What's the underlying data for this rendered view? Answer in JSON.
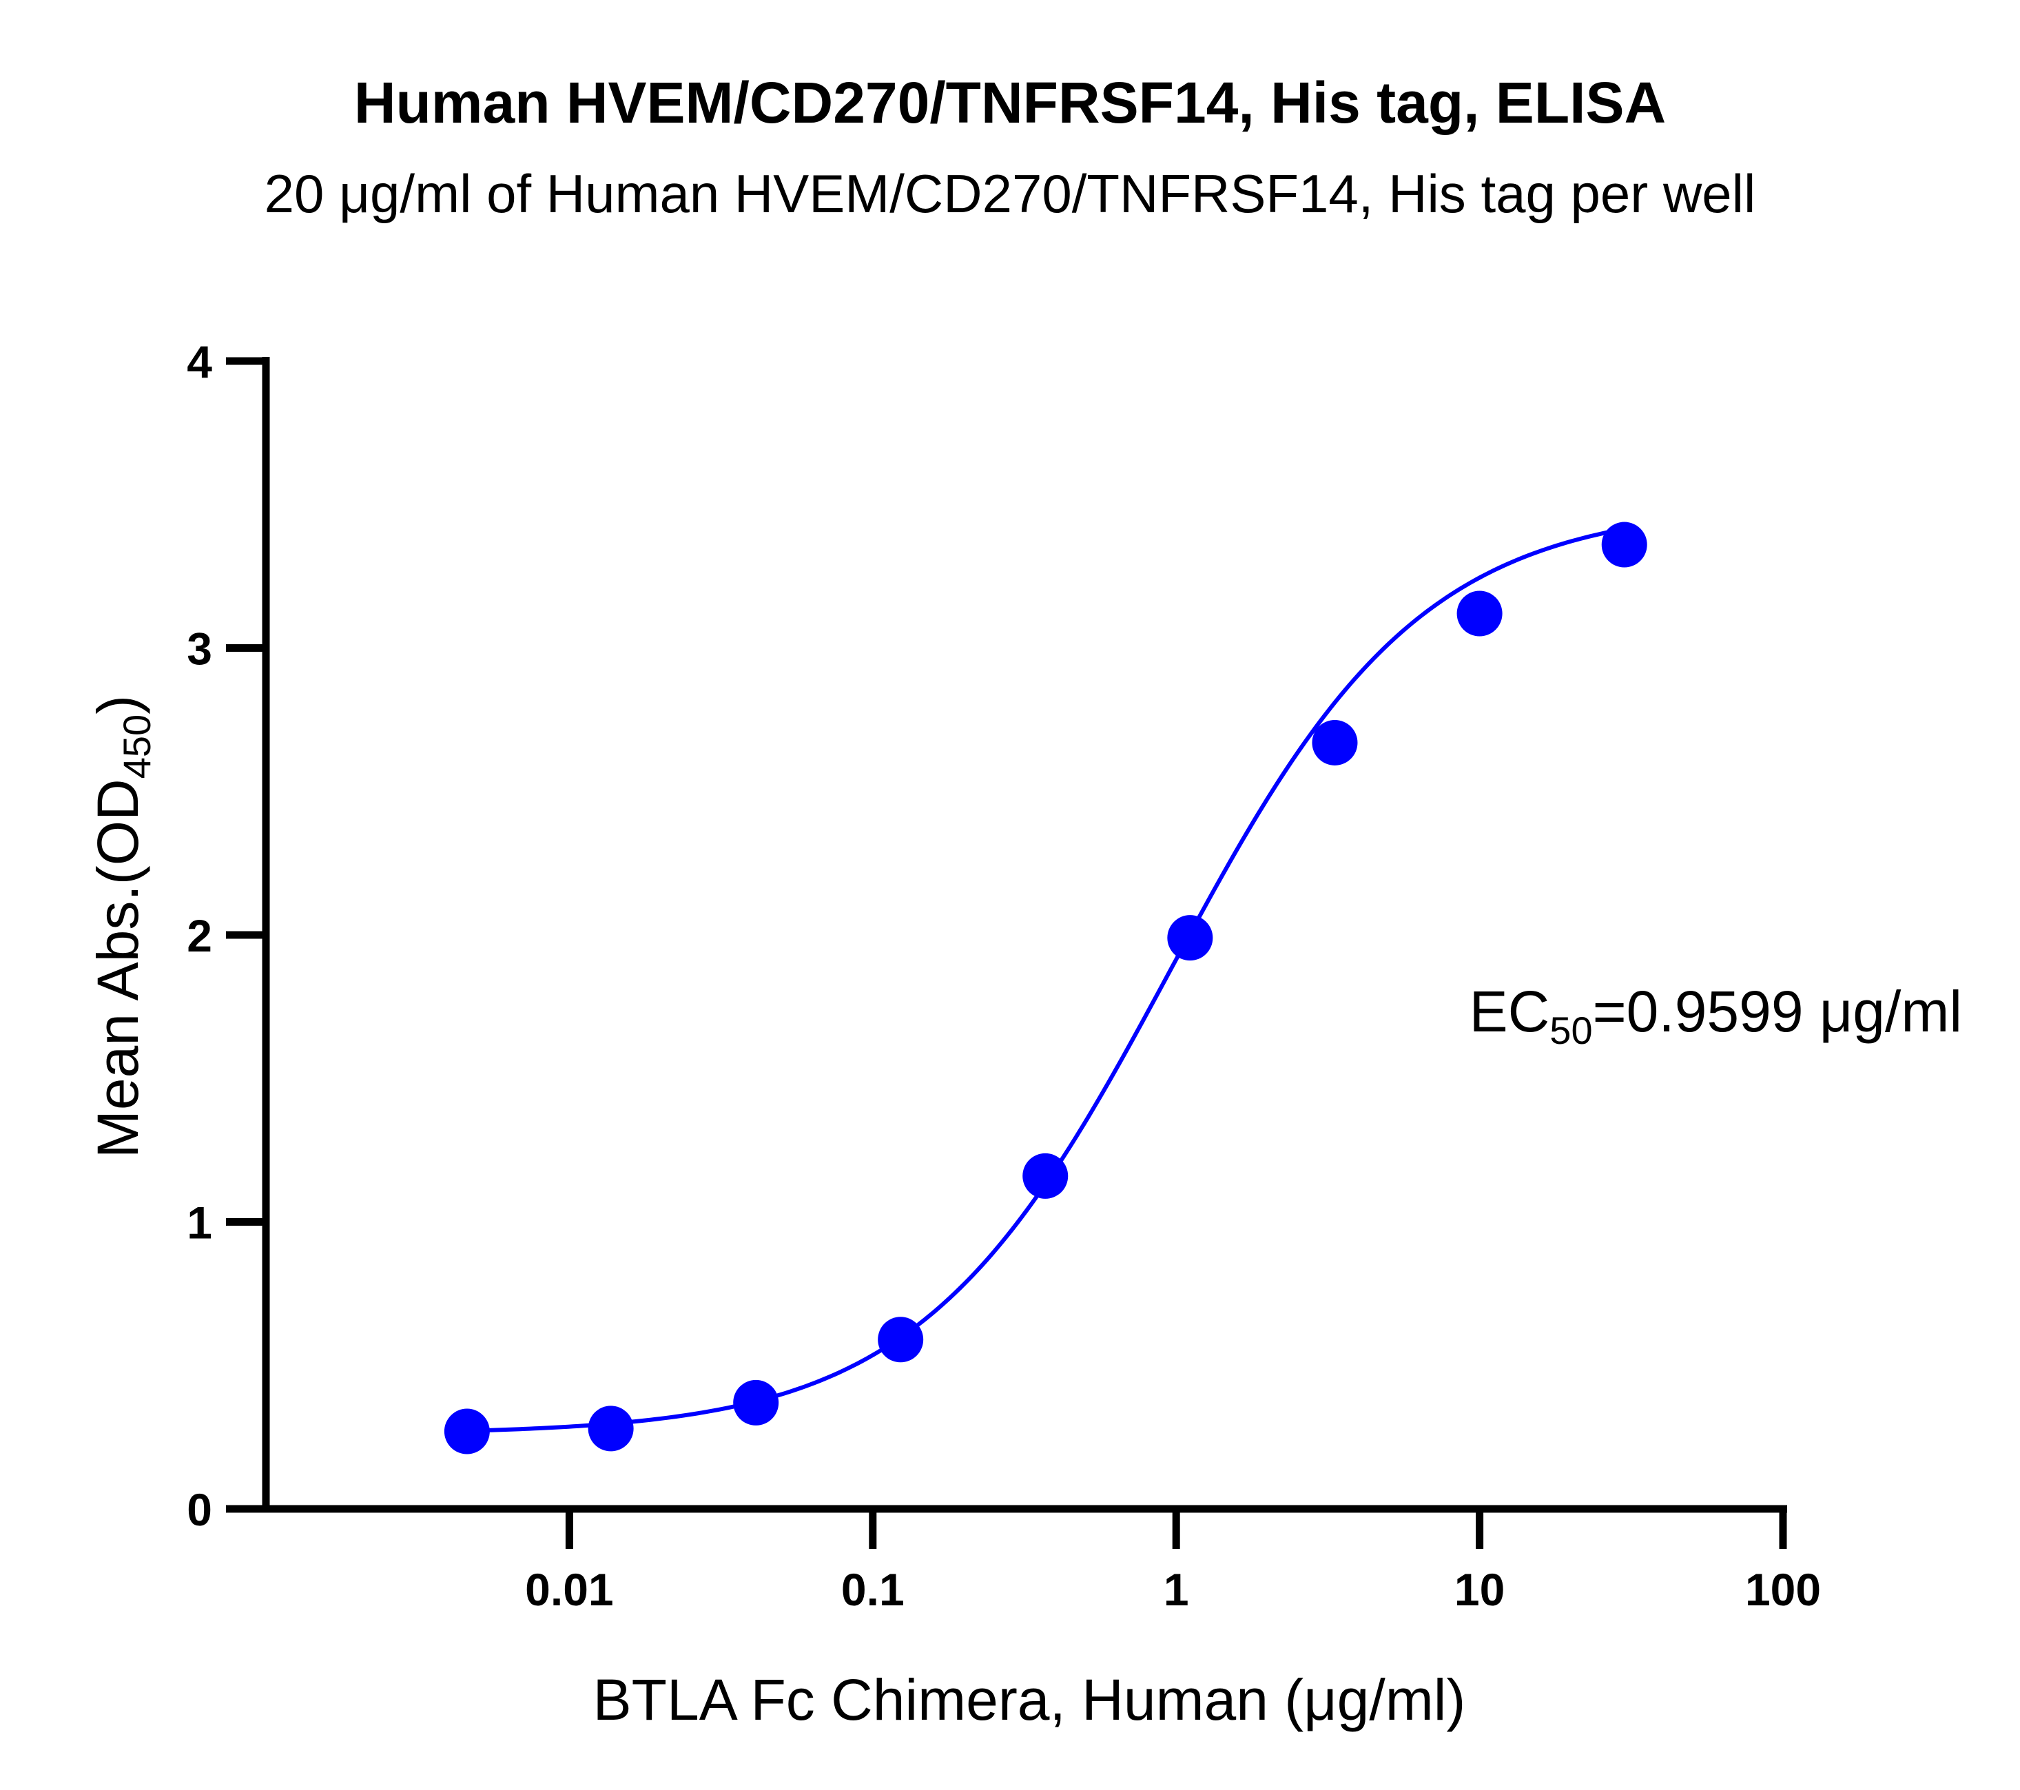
{
  "chart_data": {
    "type": "scatter",
    "title": "Human HVEM/CD270/TNFRSF14, His tag, ELISA",
    "subtitle": "20 μg/ml of Human HVEM/CD270/TNFRSF14, His tag per well",
    "xlabel": "BTLA Fc Chimera, Human (μg/ml)",
    "ylabel": {
      "main": "Mean Abs.(OD",
      "subscript": "450",
      "close": ")"
    },
    "x_scale": "log",
    "xlim": [
      0.001,
      100
    ],
    "ylim": [
      0,
      4
    ],
    "x_ticks": [
      0.01,
      0.1,
      1,
      10,
      100
    ],
    "x_tick_labels": [
      "0.01",
      "0.1",
      "1",
      "10",
      "100"
    ],
    "y_ticks": [
      0,
      1,
      2,
      3,
      4
    ],
    "y_tick_labels": [
      "0",
      "1",
      "2",
      "3",
      "4"
    ],
    "grid": false,
    "series": [
      {
        "color": "#0000ff",
        "x": [
          0.0046,
          0.0137,
          0.0412,
          0.1235,
          0.3704,
          1.1111,
          3.3333,
          10,
          30
        ],
        "y": [
          0.27,
          0.28,
          0.37,
          0.59,
          1.16,
          1.99,
          2.67,
          3.12,
          3.36
        ]
      }
    ],
    "fit_curve": {
      "model": "4PL",
      "bottom": 0.26,
      "top": 3.5,
      "ec50": 0.9599,
      "hill": 1.05,
      "color": "#0000ff"
    },
    "annotation": {
      "prefix": "EC",
      "subscript": "50",
      "suffix": "=0.9599 μg/ml"
    }
  }
}
